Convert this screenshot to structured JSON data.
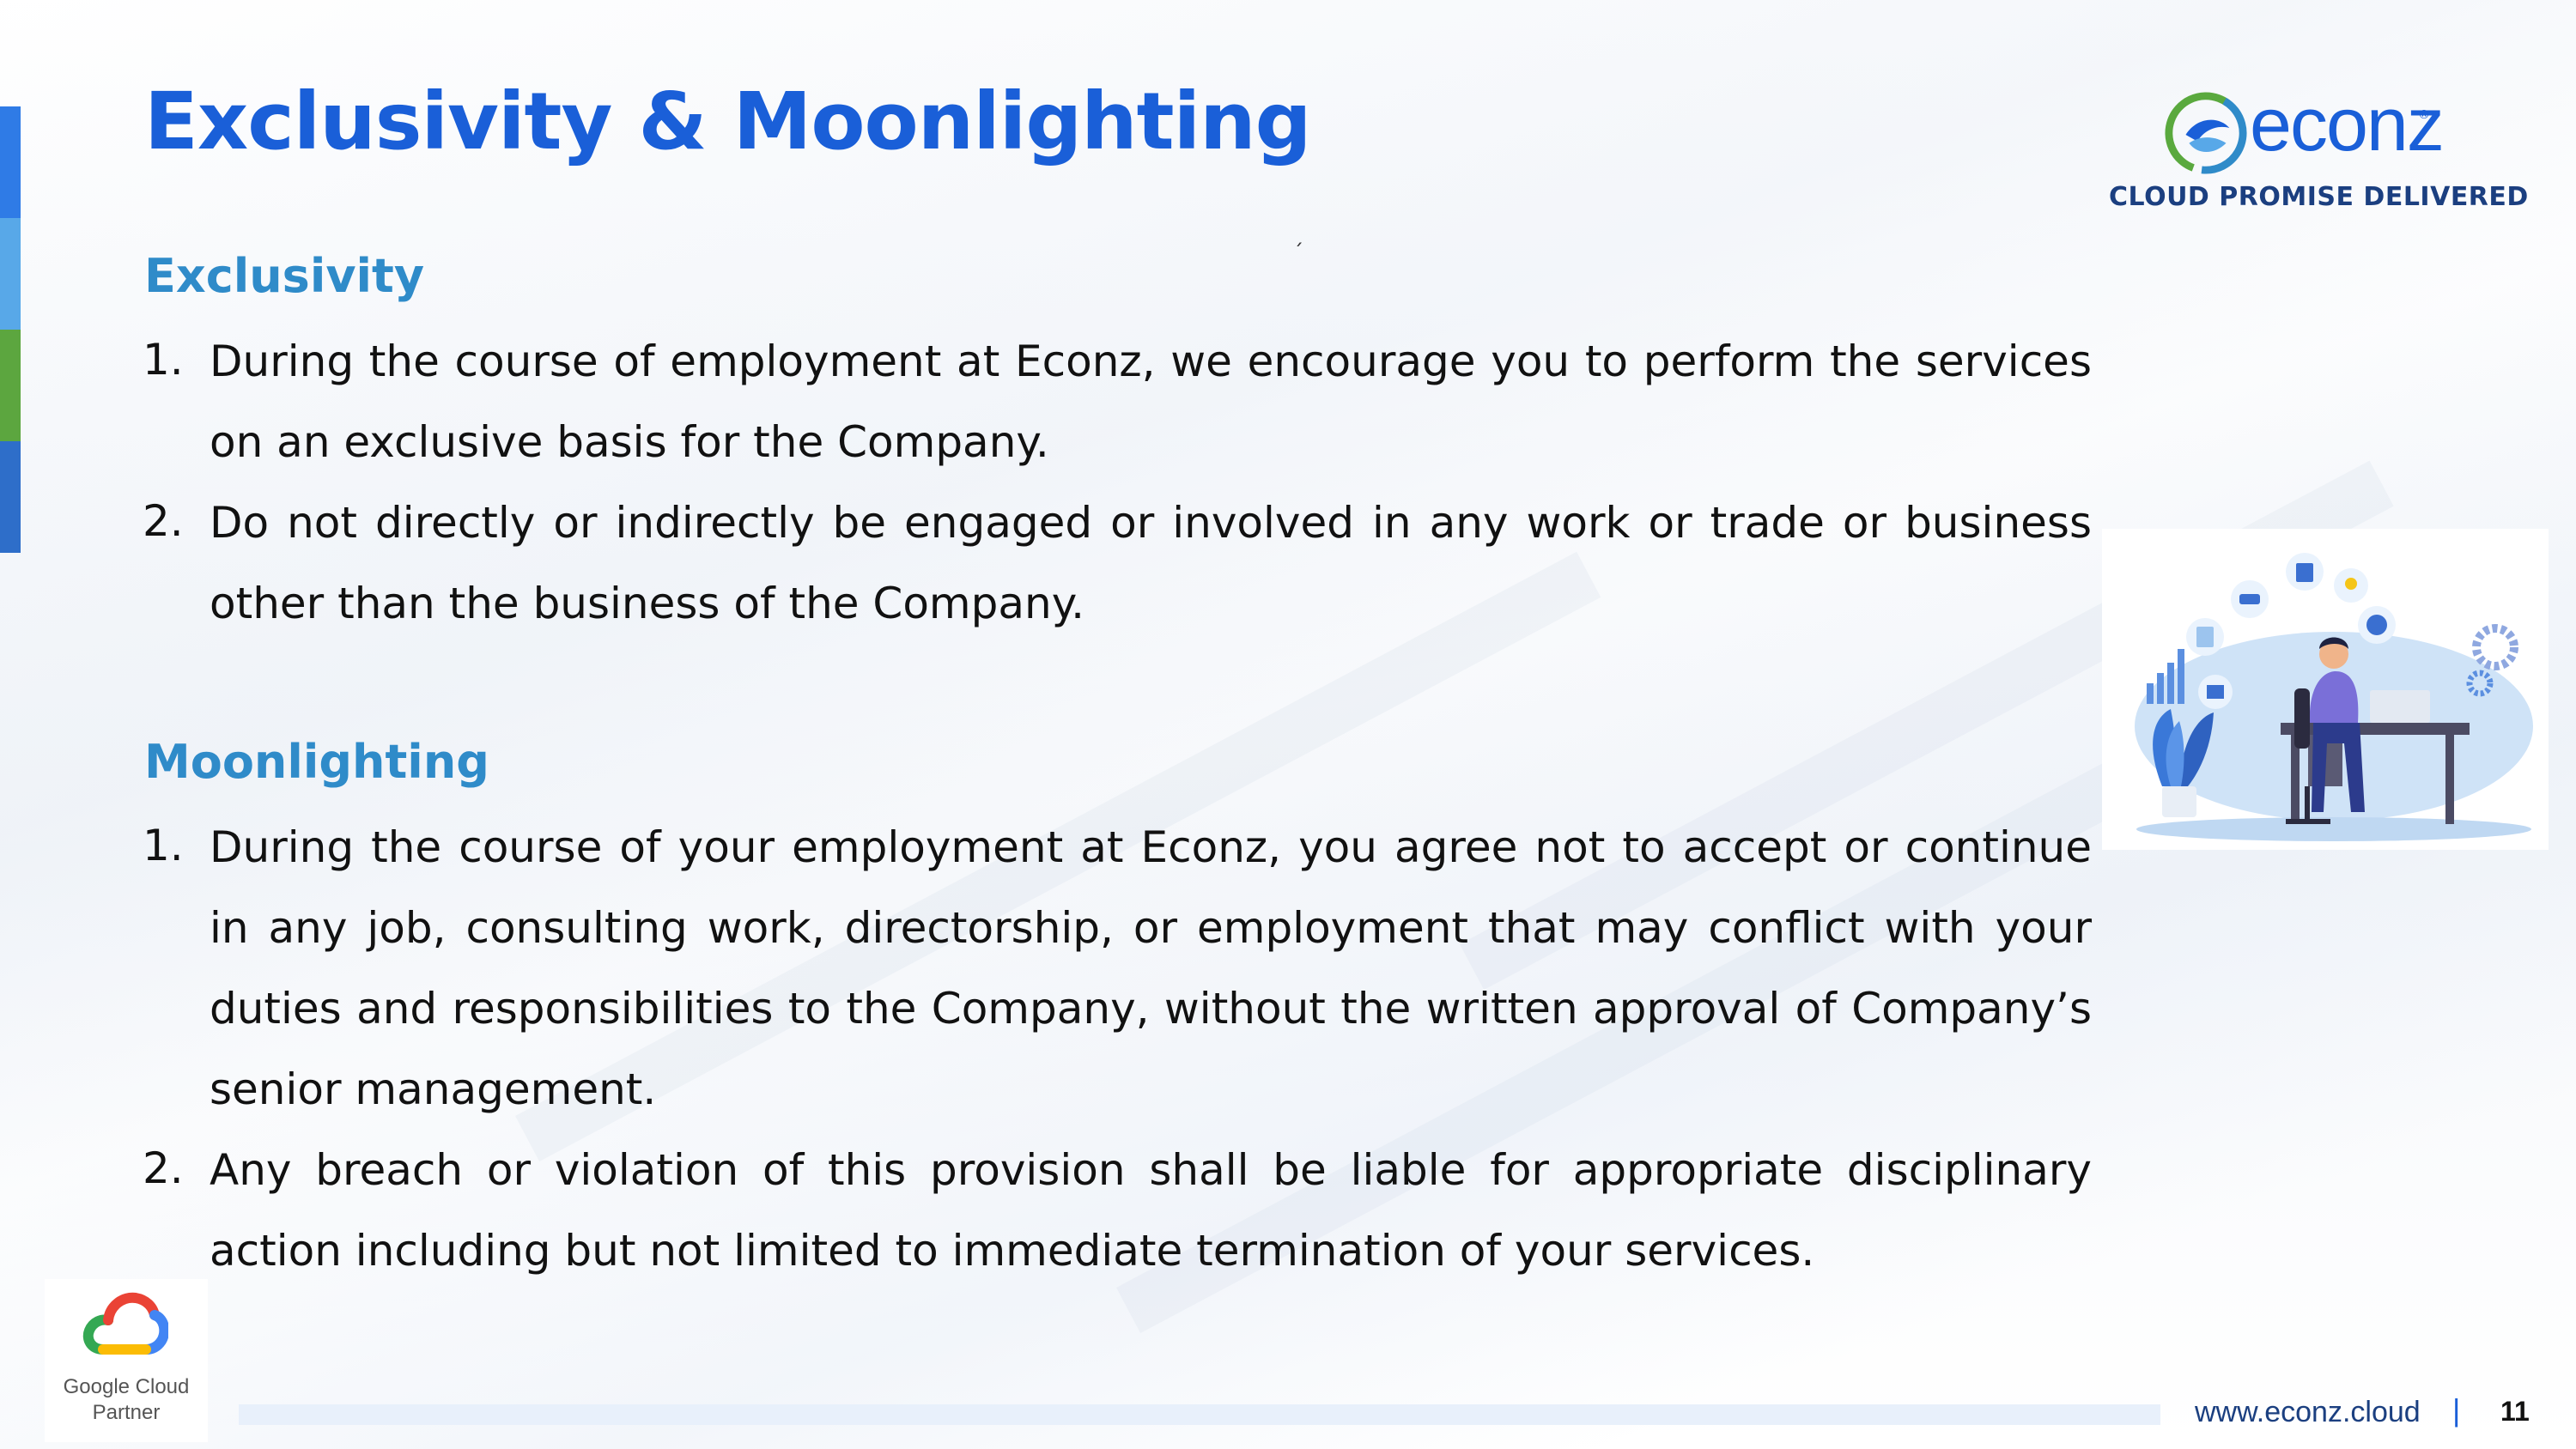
{
  "title": "Exclusivity & Moonlighting",
  "logo": {
    "wordmark": "econz",
    "registered": "®",
    "tagline": "CLOUD PROMISE DELIVERED"
  },
  "stray_mark": "´",
  "sections": [
    {
      "heading": "Exclusivity",
      "items": [
        {
          "number": "1.",
          "text": "During the course of employment at Econz, we encourage you to perform the services on an exclusive basis for the Company."
        },
        {
          "number": "2.",
          "text": "Do not directly or indirectly be engaged or involved in any work or trade or business other than the business of the Company."
        }
      ]
    },
    {
      "heading": "Moonlighting",
      "items": [
        {
          "number": "1.",
          "text": "During the course of your employment at Econz, you agree not to accept or continue in any job, consulting work, directorship, or employment that may conflict with your duties and responsibilities to the Company, without the written approval of Company’s senior management."
        },
        {
          "number": "2.",
          "text": "Any breach or violation of this provision shall be liable for appropriate disciplinary action including but not limited to immediate termination of your services."
        }
      ]
    }
  ],
  "badge": {
    "line1": "Google Cloud",
    "line2": "Partner"
  },
  "footer": {
    "url": "www.econz.cloud",
    "separator": "|",
    "page": "11"
  },
  "colors": {
    "title": "#1a5fd8",
    "heading": "#2f8bc9",
    "accent_bar": [
      "#2f7be6",
      "#58a8e8",
      "#5ca63f",
      "#2e6ec9"
    ]
  },
  "icons": [
    "econz-logo-icon",
    "office-worker-illustration",
    "google-cloud-icon"
  ]
}
